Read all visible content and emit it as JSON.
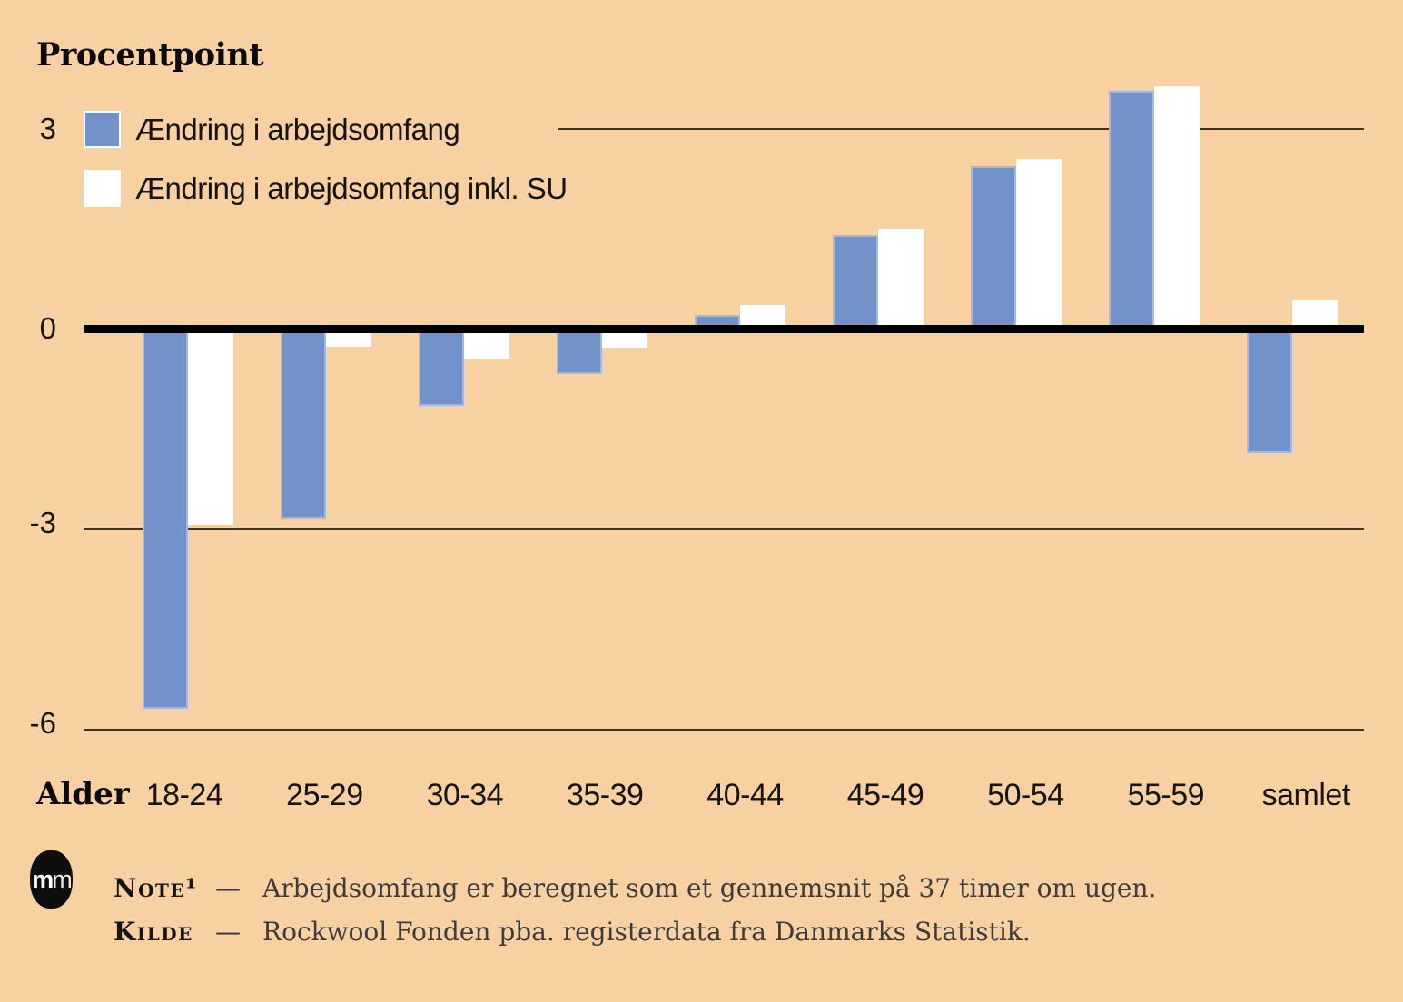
{
  "title": "Procentpoint",
  "x_axis_title": "Alder",
  "colors": {
    "background": "#f8d1a3",
    "bar_blue": "#7392c9",
    "bar_white": "#ffffff",
    "gridline": "#3a3128",
    "zero_line": "#000000"
  },
  "chart_data": {
    "type": "bar",
    "categories": [
      "18-24",
      "25-29",
      "30-34",
      "35-39",
      "40-44",
      "45-49",
      "50-54",
      "55-59",
      "samlet"
    ],
    "series": [
      {
        "name": "Ændring i arbejdsomfang",
        "color": "#7392c9",
        "values": [
          -5.7,
          -2.85,
          -1.15,
          -0.67,
          0.21,
          1.41,
          2.44,
          3.57,
          -1.86
        ]
      },
      {
        "name": "Ændring i arbejdsomfang inkl. SU",
        "color": "#ffffff",
        "values": [
          -2.93,
          -0.27,
          -0.44,
          -0.28,
          0.36,
          1.5,
          2.55,
          3.64,
          0.43
        ]
      }
    ],
    "title": "Procentpoint",
    "xlabel": "Alder",
    "ylabel": "Procentpoint",
    "y_ticks": [
      3,
      0,
      -3,
      -6
    ],
    "ylim": [
      -6.6,
      4.1
    ],
    "grid": true,
    "legend_position": "top-left"
  },
  "footer": {
    "logo_text_1": "m",
    "logo_text_2": "m",
    "note_label": "Note¹",
    "note_dash": "—",
    "note_text": "Arbejdsomfang er beregnet som et gennemsnit på 37 timer om ugen.",
    "source_label": "Kilde",
    "source_dash": "—",
    "source_text": "Rockwool Fonden pba. registerdata fra Danmarks Statistik."
  }
}
